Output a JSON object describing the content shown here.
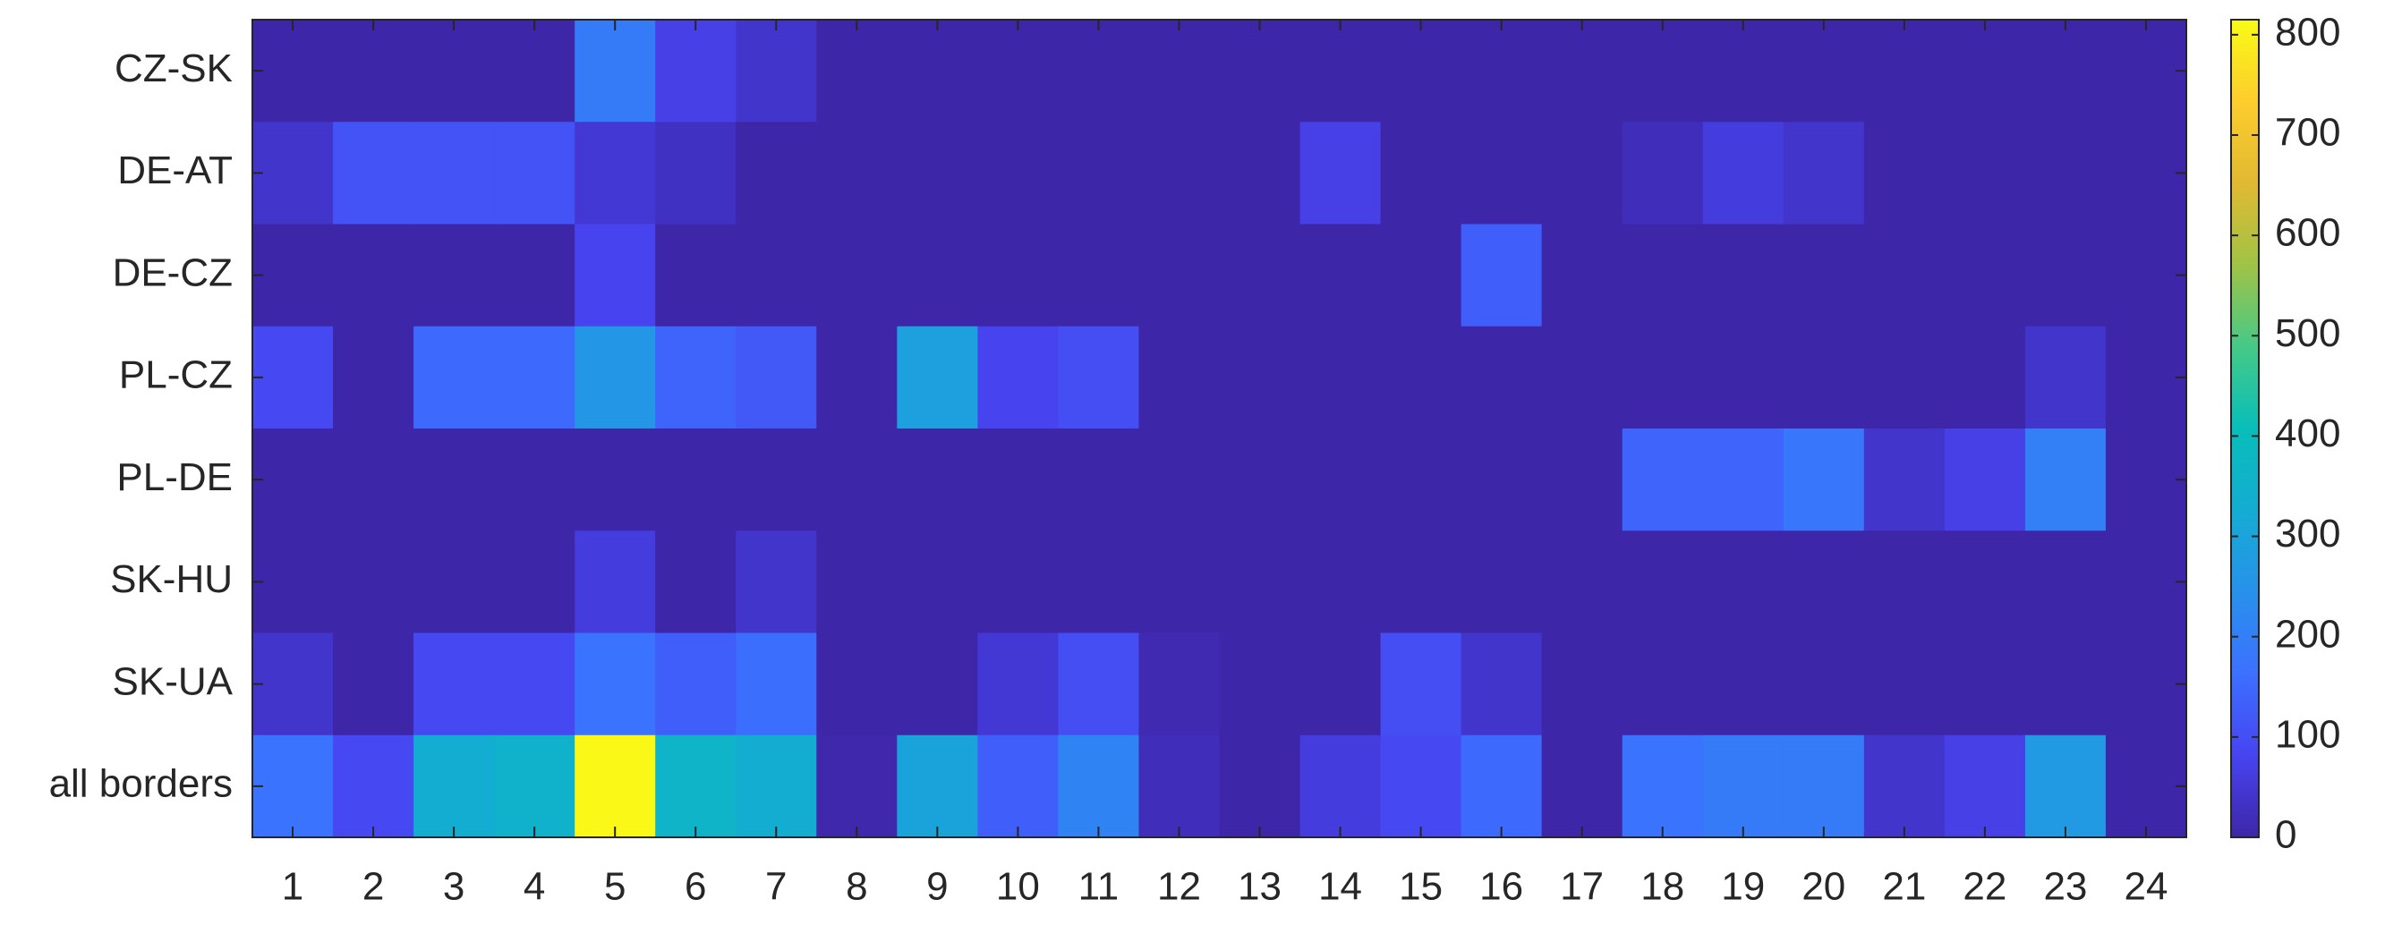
{
  "chart_data": {
    "type": "heatmap",
    "x": [
      1,
      2,
      3,
      4,
      5,
      6,
      7,
      8,
      9,
      10,
      11,
      12,
      13,
      14,
      15,
      16,
      17,
      18,
      19,
      20,
      21,
      22,
      23,
      24
    ],
    "y": [
      "CZ-SK",
      "DE-AT",
      "DE-CZ",
      "PL-CZ",
      "PL-DE",
      "SK-HU",
      "SK-UA",
      "all borders"
    ],
    "z": [
      [
        0,
        0,
        0,
        0,
        190,
        70,
        40,
        0,
        0,
        0,
        0,
        0,
        0,
        0,
        0,
        0,
        0,
        0,
        0,
        0,
        0,
        0,
        0,
        0
      ],
      [
        40,
        110,
        110,
        110,
        50,
        30,
        0,
        0,
        0,
        0,
        0,
        0,
        0,
        70,
        0,
        0,
        0,
        20,
        60,
        40,
        0,
        0,
        0,
        0
      ],
      [
        0,
        0,
        0,
        0,
        80,
        0,
        0,
        0,
        0,
        0,
        0,
        0,
        0,
        0,
        0,
        130,
        0,
        0,
        0,
        0,
        0,
        0,
        0,
        0
      ],
      [
        90,
        0,
        150,
        150,
        260,
        140,
        120,
        0,
        290,
        80,
        100,
        0,
        0,
        0,
        0,
        0,
        0,
        0,
        0,
        0,
        0,
        0,
        40,
        0
      ],
      [
        0,
        0,
        0,
        0,
        0,
        0,
        0,
        0,
        0,
        0,
        0,
        0,
        0,
        0,
        0,
        0,
        0,
        140,
        140,
        180,
        40,
        70,
        200,
        0
      ],
      [
        0,
        0,
        0,
        0,
        60,
        0,
        40,
        0,
        0,
        0,
        0,
        0,
        0,
        0,
        0,
        0,
        0,
        0,
        0,
        0,
        0,
        0,
        0,
        0
      ],
      [
        40,
        0,
        90,
        90,
        170,
        130,
        160,
        0,
        0,
        50,
        100,
        10,
        0,
        0,
        100,
        40,
        0,
        0,
        0,
        0,
        0,
        0,
        0,
        0
      ],
      [
        170,
        90,
        330,
        350,
        810,
        360,
        330,
        5,
        300,
        130,
        210,
        20,
        0,
        60,
        90,
        150,
        0,
        170,
        190,
        190,
        40,
        70,
        270,
        0
      ]
    ],
    "clim": [
      0,
      815
    ],
    "cticks": [
      0,
      100,
      200,
      300,
      400,
      500,
      600,
      700,
      800
    ],
    "colormap": "parula"
  }
}
